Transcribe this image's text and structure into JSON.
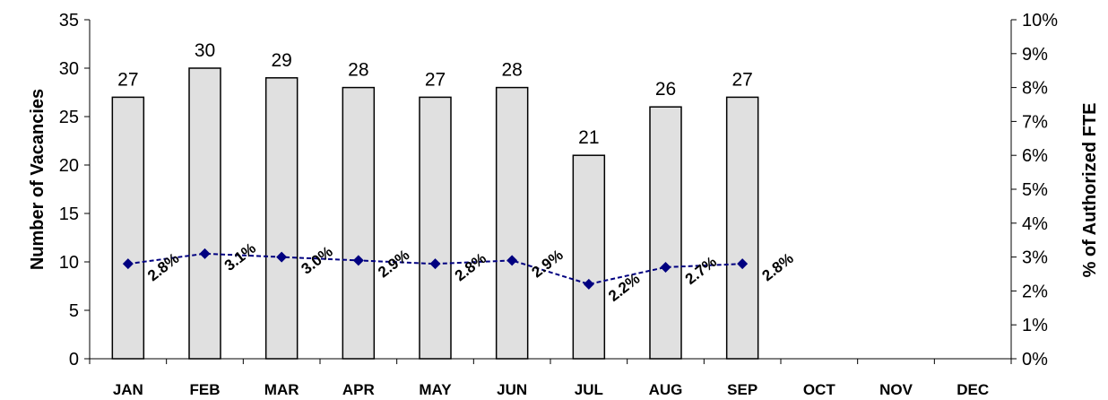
{
  "chart_data": {
    "type": "bar",
    "categories": [
      "JAN",
      "FEB",
      "MAR",
      "APR",
      "MAY",
      "JUN",
      "JUL",
      "AUG",
      "SEP",
      "OCT",
      "NOV",
      "DEC"
    ],
    "series": [
      {
        "type": "bar",
        "values": [
          27,
          30,
          29,
          28,
          27,
          28,
          21,
          26,
          27,
          null,
          null,
          null
        ],
        "data_labels": [
          "27",
          "30",
          "29",
          "28",
          "27",
          "28",
          "21",
          "26",
          "27"
        ]
      },
      {
        "type": "line",
        "axis": "right",
        "values": [
          2.8,
          3.1,
          3.0,
          2.9,
          2.8,
          2.9,
          2.2,
          2.7,
          2.8,
          null,
          null,
          null
        ],
        "data_labels": [
          "2.8%",
          "3.1%",
          "3.0%",
          "2.9%",
          "2.8%",
          "2.9%",
          "2.2%",
          "2.7%",
          "2.8%"
        ]
      }
    ],
    "ylabel": "Number of Vacancies",
    "y2label": "% of Authorized FTE",
    "ylim": [
      0,
      35
    ],
    "y2lim": [
      0,
      10
    ],
    "yticks": [
      "0",
      "5",
      "10",
      "15",
      "20",
      "25",
      "30",
      "35"
    ],
    "y2ticks": [
      "0%",
      "1%",
      "2%",
      "3%",
      "4%",
      "5%",
      "6%",
      "7%",
      "8%",
      "9%",
      "10%"
    ],
    "grid": false,
    "bar_color": "#e0e0e0",
    "line_color": "#000080"
  }
}
